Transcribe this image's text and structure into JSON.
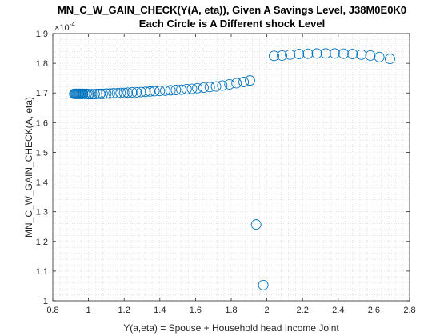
{
  "chart_data": {
    "type": "scatter",
    "title": "MN_C_W_GAIN_CHECK(Y(A, eta)), Given A Savings Level, J38M0E0K0",
    "subtitle": "Each Circle is A Different shock Level",
    "xlabel": "Y(a,eta) = Spouse + Household head Income Joint",
    "ylabel": "MN_C_W_GAIN_CHECK(A, eta)",
    "y_exponent_label": "×10",
    "y_exponent_power": "-4",
    "xlim": [
      0.8,
      2.8
    ],
    "ylim": [
      1.0,
      1.9
    ],
    "x_ticks": [
      0.8,
      1.0,
      1.2,
      1.4,
      1.6,
      1.8,
      2.0,
      2.2,
      2.4,
      2.6,
      2.8
    ],
    "x_tick_labels": [
      "0.8",
      "1",
      "1.2",
      "1.4",
      "1.6",
      "1.8",
      "2",
      "2.2",
      "2.4",
      "2.6",
      "2.8"
    ],
    "y_ticks": [
      1.0,
      1.1,
      1.2,
      1.3,
      1.4,
      1.5,
      1.6,
      1.7,
      1.8,
      1.9
    ],
    "y_tick_labels": [
      "1",
      "1.1",
      "1.2",
      "1.3",
      "1.4",
      "1.5",
      "1.6",
      "1.7",
      "1.8",
      "1.9"
    ],
    "grid": "minor-dotted",
    "marker": "open-circle",
    "marker_color": "#0072BD",
    "series": [
      {
        "x": [
          0.92,
          0.925,
          0.93,
          0.935,
          0.94,
          0.945,
          0.95,
          0.955,
          0.96,
          0.965,
          0.97,
          0.98,
          0.99,
          1.0,
          1.01,
          1.02,
          1.035,
          1.05,
          1.065,
          1.08,
          1.1,
          1.12,
          1.14,
          1.16,
          1.18,
          1.2,
          1.22,
          1.245,
          1.27,
          1.295,
          1.32,
          1.345,
          1.37,
          1.4,
          1.43,
          1.46,
          1.49,
          1.52,
          1.55,
          1.58,
          1.61,
          1.645,
          1.68,
          1.715,
          1.75,
          1.79,
          1.83,
          1.87,
          1.905,
          1.94,
          1.98,
          2.04,
          2.085,
          2.13,
          2.18,
          2.23,
          2.28,
          2.33,
          2.38,
          2.43,
          2.48,
          2.53,
          2.58,
          2.63,
          2.69
        ],
        "y": [
          1.697,
          1.697,
          1.697,
          1.697,
          1.697,
          1.697,
          1.697,
          1.697,
          1.697,
          1.697,
          1.697,
          1.697,
          1.697,
          1.696,
          1.696,
          1.696,
          1.696,
          1.697,
          1.697,
          1.697,
          1.698,
          1.698,
          1.699,
          1.699,
          1.7,
          1.7,
          1.701,
          1.702,
          1.702,
          1.703,
          1.704,
          1.705,
          1.706,
          1.707,
          1.708,
          1.709,
          1.71,
          1.711,
          1.713,
          1.714,
          1.716,
          1.718,
          1.72,
          1.722,
          1.725,
          1.729,
          1.733,
          1.737,
          1.742,
          1.257,
          1.053,
          1.825,
          1.826,
          1.829,
          1.831,
          1.832,
          1.833,
          1.833,
          1.833,
          1.832,
          1.831,
          1.829,
          1.826,
          1.821,
          1.815
        ]
      }
    ]
  }
}
